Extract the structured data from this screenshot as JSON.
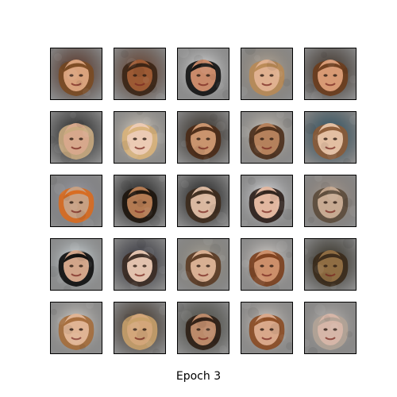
{
  "caption": "Epoch 3",
  "grid": {
    "rows": 5,
    "cols": 5,
    "tiles": [
      {
        "bg": "#5a2a18",
        "skin": "#d9a27c",
        "hair": "#7a4a22"
      },
      {
        "bg": "#6a3a22",
        "skin": "#9c5a34",
        "hair": "#3a2414"
      },
      {
        "bg": "#f2f2f2",
        "skin": "#c98a6a",
        "hair": "#111111"
      },
      {
        "bg": "#c9b7a0",
        "skin": "#e0b190",
        "hair": "#b88a55"
      },
      {
        "bg": "#3a2a1e",
        "skin": "#d89a74",
        "hair": "#6b3c1c"
      },
      {
        "bg": "#1a1a1a",
        "skin": "#d7a88c",
        "hair": "#c9aa80"
      },
      {
        "bg": "#f3e8d8",
        "skin": "#eccbb4",
        "hair": "#d9b27a"
      },
      {
        "bg": "#2a2016",
        "skin": "#c9946e",
        "hair": "#4a2a16"
      },
      {
        "bg": "#e6ddd0",
        "skin": "#b5815c",
        "hair": "#4a2c18"
      },
      {
        "bg": "#1f4e63",
        "skin": "#e3bfa2",
        "hair": "#8a5a36"
      },
      {
        "bg": "#a7a7b2",
        "skin": "#c7a083",
        "hair": "#d96a1e"
      },
      {
        "bg": "#101010",
        "skin": "#b27a52",
        "hair": "#1c140c"
      },
      {
        "bg": "#141414",
        "skin": "#d9b8a0",
        "hair": "#3c2a1c"
      },
      {
        "bg": "#f3f3f6",
        "skin": "#e2b7a0",
        "hair": "#2a1d18"
      },
      {
        "bg": "#b8a698",
        "skin": "#c7aa92",
        "hair": "#5b4a3a"
      },
      {
        "bg": "#e8f2f6",
        "skin": "#d2a58a",
        "hair": "#0c0c0c"
      },
      {
        "bg": "#2a2a36",
        "skin": "#e2c2ae",
        "hair": "#3a2a22"
      },
      {
        "bg": "#b7b0a0",
        "skin": "#d8b093",
        "hair": "#5a3a22"
      },
      {
        "bg": "#f2ece6",
        "skin": "#cc8f6a",
        "hair": "#7a3e1c"
      },
      {
        "bg": "#2b2517",
        "skin": "#8f6d43",
        "hair": "#3a2a1a"
      },
      {
        "bg": "#eae6e0",
        "skin": "#e0b494",
        "hair": "#a46b3a"
      },
      {
        "bg": "#3d2c1e",
        "skin": "#d3a67a",
        "hair": "#c8a06a"
      },
      {
        "bg": "#4a4a40",
        "skin": "#bb8a6a",
        "hair": "#2c1e14"
      },
      {
        "bg": "#e8e0d8",
        "skin": "#d9a88a",
        "hair": "#8a4a22"
      },
      {
        "bg": "#cfc9c4",
        "skin": "#d6b6a8",
        "hair": "#b3a396"
      }
    ]
  }
}
